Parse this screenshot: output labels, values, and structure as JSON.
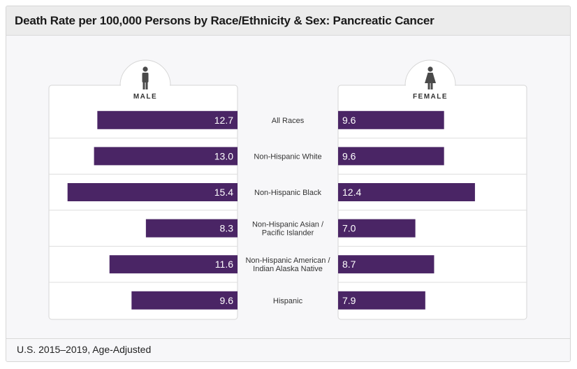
{
  "title": "Death Rate per 100,000 Persons by Race/Ethnicity & Sex: Pancreatic Cancer",
  "footnote": "U.S. 2015–2019, Age-Adjusted",
  "colors": {
    "bar": "#4a2565",
    "panel": "#ffffff",
    "border": "#d6d6d6",
    "icon": "#4a4a4a"
  },
  "icons": {
    "male": "male-person-icon",
    "female": "female-person-icon"
  },
  "chart_data": {
    "type": "bar",
    "orientation": "horizontal-butterfly",
    "title": "Death Rate per 100,000 Persons by Race/Ethnicity & Sex: Pancreatic Cancer",
    "categories": [
      [
        "All Races"
      ],
      [
        "Non-Hispanic White"
      ],
      [
        "Non-Hispanic Black"
      ],
      [
        "Non-Hispanic Asian /",
        "Pacific Islander"
      ],
      [
        "Non-Hispanic American /",
        "Indian Alaska Native"
      ],
      [
        "Hispanic"
      ]
    ],
    "series": [
      {
        "name": "MALE",
        "values": [
          12.7,
          13.0,
          15.4,
          8.3,
          11.6,
          9.6
        ]
      },
      {
        "name": "FEMALE",
        "values": [
          9.6,
          9.6,
          12.4,
          7.0,
          8.7,
          7.9
        ]
      }
    ],
    "grid": false,
    "legend": "none"
  }
}
